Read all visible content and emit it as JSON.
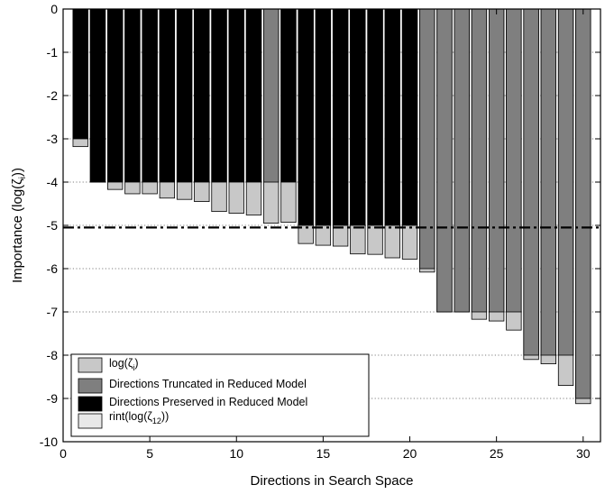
{
  "chart_data": {
    "type": "bar",
    "xlabel": "Directions in Search Space",
    "ylabel": "Importance  (log(ζᵢ))",
    "xlim": [
      0,
      31
    ],
    "ylim": [
      -10,
      0
    ],
    "x_ticks": [
      "0",
      "5",
      "10",
      "15",
      "20",
      "25",
      "30"
    ],
    "y_ticks": [
      "0",
      "-1",
      "-2",
      "-3",
      "-4",
      "-5",
      "-6",
      "-7",
      "-8",
      "-9",
      "-10"
    ],
    "grid": "horizontal dotted",
    "legend_placement": "bottom-left",
    "threshold_line": -5.05,
    "directions": [
      1,
      2,
      3,
      4,
      5,
      6,
      7,
      8,
      9,
      10,
      11,
      12,
      13,
      14,
      15,
      16,
      17,
      18,
      19,
      20,
      21,
      22,
      23,
      24,
      25,
      26,
      27,
      28,
      29,
      30
    ],
    "series": [
      {
        "name": "log(ζᵢ)",
        "color": "#c8c8c8",
        "values": [
          -3.18,
          -4.0,
          -4.17,
          -4.27,
          -4.27,
          -4.37,
          -4.4,
          -4.45,
          -4.68,
          -4.72,
          -4.76,
          -4.95,
          -4.93,
          -5.42,
          -5.46,
          -5.48,
          -5.66,
          -5.67,
          -5.75,
          -5.78,
          -6.08,
          -7.0,
          -7.0,
          -7.17,
          -7.21,
          -7.42,
          -8.1,
          -8.2,
          -8.7,
          -9.12
        ]
      },
      {
        "name": "Directions Truncated in Reduced Model",
        "color": "#7f7f7f",
        "values": [
          null,
          null,
          null,
          null,
          null,
          null,
          null,
          null,
          null,
          null,
          null,
          -4.0,
          null,
          null,
          null,
          null,
          null,
          null,
          null,
          null,
          -6.0,
          -7.0,
          -7.0,
          -7.0,
          -7.0,
          -7.0,
          -8.0,
          -8.0,
          -8.0,
          -9.0
        ]
      },
      {
        "name": "Directions Preserved in Reduced Model",
        "color": "#000000",
        "values": [
          -3.0,
          -4.0,
          -4.0,
          -4.0,
          -4.0,
          -4.0,
          -4.0,
          -4.0,
          -4.0,
          -4.0,
          -4.0,
          null,
          -4.0,
          -5.0,
          -5.0,
          -5.0,
          -5.0,
          -5.0,
          -5.0,
          -5.0,
          null,
          null,
          null,
          null,
          null,
          null,
          null,
          null,
          null,
          null
        ]
      },
      {
        "name": "rint(log(ζ₁₂))",
        "color": "#e8e8e8",
        "values": []
      }
    ],
    "legend": {
      "entries": [
        {
          "label": "log(ζ",
          "sub": "i",
          "suffix": ")",
          "color": "#c8c8c8"
        },
        {
          "label": "Directions Truncated in Reduced Model",
          "sub": "",
          "suffix": "",
          "color": "#7f7f7f"
        },
        {
          "label": "Directions Preserved in Reduced Model",
          "sub": "",
          "suffix": "",
          "color": "#000000"
        },
        {
          "label": "rint(log(ζ",
          "sub": "12",
          "suffix": "))",
          "color": "#e8e8e8"
        }
      ]
    },
    "ylabel_parts": {
      "prefix": "Importance  (log(ζ",
      "sub": "i",
      "suffix": "))"
    }
  }
}
